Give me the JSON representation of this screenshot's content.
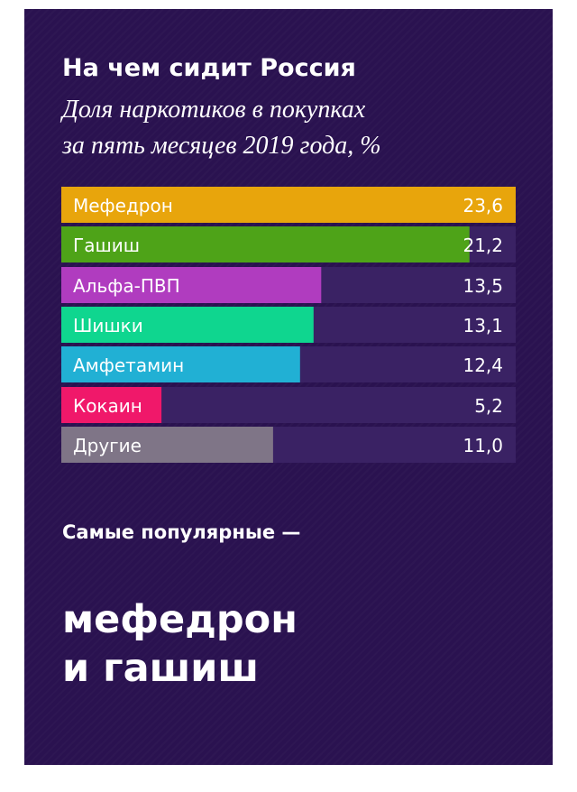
{
  "title": "На чем сидит Россия",
  "subtitle_lines": [
    "Доля наркотиков в покупках",
    "за пять месяцев 2019 года, %"
  ],
  "conclusion": {
    "lead": "Самые популярные —",
    "highlight_lines": [
      "мефедрон",
      "и гашиш"
    ]
  },
  "colors": {
    "background": "#2a1250",
    "track": "#3a2264",
    "text": "#ffffff"
  },
  "chart_data": {
    "type": "bar",
    "orientation": "horizontal",
    "categories": [
      "Мефедрон",
      "Гашиш",
      "Альфа-ПВП",
      "Шишки",
      "Амфетамин",
      "Кокаин",
      "Другие"
    ],
    "values": [
      23.6,
      21.2,
      13.5,
      13.1,
      12.4,
      5.2,
      11.0
    ],
    "value_labels": [
      "23,6",
      "21,2",
      "13,5",
      "13,1",
      "12,4",
      "5,2",
      "11,0"
    ],
    "colors": [
      "#e8a50c",
      "#4ea318",
      "#b03cbf",
      "#0fd68f",
      "#21b0d4",
      "#f0186a",
      "#7f7587"
    ],
    "xlim": [
      0,
      23.6
    ],
    "title": "На чем сидит Россия",
    "xlabel": "",
    "ylabel": ""
  }
}
